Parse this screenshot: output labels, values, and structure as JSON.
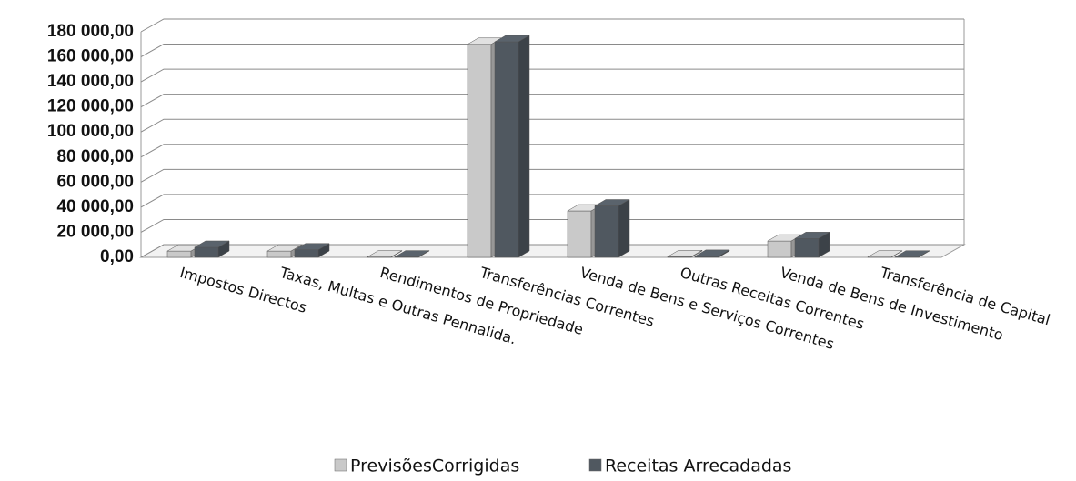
{
  "chart_data": {
    "type": "bar3d",
    "categories": [
      "Impostos Directos",
      "Taxas, Multas e Outras Pennalida.",
      "Rendimentos de Propriedade",
      "Transferências Correntes",
      "Venda de Bens e Serviços Correntes",
      "Outras Receitas Correntes",
      "Venda de Bens de Investimento",
      "Transferência de Capital"
    ],
    "series": [
      {
        "name": "PrevisõesCorrigidas",
        "color": "#c9c9c9",
        "values": [
          5000,
          5000,
          300,
          170000,
          37000,
          500,
          13000,
          200
        ]
      },
      {
        "name": "Receitas Arrecadadas",
        "color": "#505860",
        "values": [
          8000,
          6000,
          300,
          172000,
          41000,
          800,
          15000,
          200
        ]
      }
    ],
    "ylim": [
      0,
      180000
    ],
    "yticks": [
      {
        "value": 0,
        "label": "0,00"
      },
      {
        "value": 20000,
        "label": "20 000,00"
      },
      {
        "value": 40000,
        "label": "40 000,00"
      },
      {
        "value": 60000,
        "label": "60 000,00"
      },
      {
        "value": 80000,
        "label": "80 000,00"
      },
      {
        "value": 100000,
        "label": "100 000,00"
      },
      {
        "value": 120000,
        "label": "120 000,00"
      },
      {
        "value": 140000,
        "label": "140 000,00"
      },
      {
        "value": 160000,
        "label": "160 000,00"
      },
      {
        "value": 180000,
        "label": "180 000,00"
      }
    ],
    "grid": true,
    "legend": "bottom"
  }
}
